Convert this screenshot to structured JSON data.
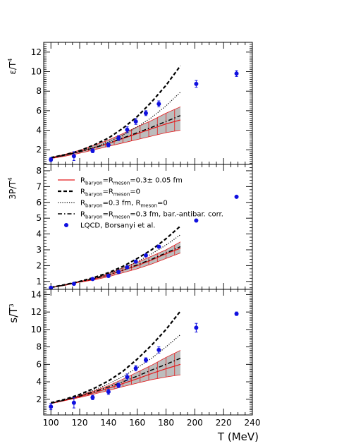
{
  "chart_data": [
    {
      "type": "line",
      "panel": "energy-density",
      "ylabel_base": "ε/T",
      "ylabel_sup": "4",
      "xlabel": "T (MeV)",
      "xlim": [
        95,
        240
      ],
      "ylim": [
        0.5,
        13.0
      ],
      "yticks": [
        2,
        4,
        6,
        8,
        10,
        12
      ],
      "xticks": [
        100,
        120,
        140,
        160,
        180,
        200,
        220,
        240
      ],
      "grid": false,
      "band": {
        "x": [
          100,
          110,
          120,
          130,
          140,
          150,
          160,
          170,
          180,
          190
        ],
        "lower": [
          1.1,
          1.35,
          1.65,
          2.0,
          2.35,
          2.7,
          3.05,
          3.4,
          3.75,
          4.0
        ],
        "upper": [
          1.2,
          1.55,
          1.95,
          2.45,
          3.0,
          3.65,
          4.35,
          5.0,
          5.75,
          6.4
        ],
        "center": [
          1.15,
          1.45,
          1.8,
          2.2,
          2.65,
          3.15,
          3.65,
          4.15,
          4.65,
          5.05
        ]
      },
      "series": [
        {
          "style": "dashed",
          "x": [
            100,
            110,
            120,
            130,
            140,
            150,
            160,
            170,
            180,
            190
          ],
          "y": [
            1.2,
            1.5,
            1.9,
            2.5,
            3.2,
            4.2,
            5.4,
            6.9,
            8.6,
            10.6
          ]
        },
        {
          "style": "dotted",
          "x": [
            100,
            110,
            120,
            130,
            140,
            150,
            160,
            170,
            180,
            190
          ],
          "y": [
            1.2,
            1.45,
            1.8,
            2.25,
            2.8,
            3.5,
            4.35,
            5.3,
            6.5,
            7.9
          ]
        },
        {
          "style": "dashdot",
          "x": [
            100,
            110,
            120,
            130,
            140,
            150,
            160,
            170,
            180,
            190
          ],
          "y": [
            1.15,
            1.45,
            1.8,
            2.2,
            2.65,
            3.2,
            3.75,
            4.3,
            4.9,
            5.5
          ]
        }
      ],
      "points": {
        "x": [
          100,
          116,
          129,
          140,
          147,
          153,
          159,
          166,
          175,
          201,
          229
        ],
        "y": [
          1.0,
          1.35,
          1.9,
          2.5,
          3.2,
          4.05,
          4.9,
          5.75,
          6.7,
          8.75,
          9.8
        ],
        "err": [
          0.2,
          0.45,
          0.2,
          0.2,
          0.25,
          0.3,
          0.3,
          0.25,
          0.3,
          0.35,
          0.3
        ]
      }
    },
    {
      "type": "line",
      "panel": "pressure",
      "ylabel_base": "3P/T",
      "ylabel_sup": "4",
      "xlabel": "T (MeV)",
      "xlim": [
        95,
        240
      ],
      "ylim": [
        0.5,
        8.4
      ],
      "yticks": [
        1,
        2,
        3,
        4,
        5,
        6,
        7,
        8
      ],
      "xticks": [
        100,
        120,
        140,
        160,
        180,
        200,
        220,
        240
      ],
      "grid": false,
      "band": {
        "x": [
          100,
          110,
          120,
          130,
          140,
          150,
          160,
          170,
          180,
          190
        ],
        "lower": [
          0.6,
          0.75,
          0.95,
          1.1,
          1.3,
          1.55,
          1.8,
          2.1,
          2.45,
          2.8
        ],
        "upper": [
          0.62,
          0.8,
          1.0,
          1.2,
          1.5,
          1.85,
          2.2,
          2.6,
          3.0,
          3.5
        ],
        "center": [
          0.61,
          0.78,
          0.97,
          1.15,
          1.4,
          1.7,
          2.0,
          2.35,
          2.75,
          3.1
        ]
      },
      "series": [
        {
          "style": "dashed",
          "x": [
            100,
            110,
            120,
            130,
            140,
            150,
            160,
            170,
            180,
            190
          ],
          "y": [
            0.62,
            0.8,
            1.0,
            1.25,
            1.55,
            1.95,
            2.45,
            3.0,
            3.7,
            4.5
          ]
        },
        {
          "style": "dotted",
          "x": [
            100,
            110,
            120,
            130,
            140,
            150,
            160,
            170,
            180,
            190
          ],
          "y": [
            0.62,
            0.8,
            1.0,
            1.2,
            1.5,
            1.85,
            2.25,
            2.75,
            3.3,
            3.95
          ]
        },
        {
          "style": "dashdot",
          "x": [
            100,
            110,
            120,
            130,
            140,
            150,
            160,
            170,
            180,
            190
          ],
          "y": [
            0.61,
            0.78,
            0.98,
            1.17,
            1.42,
            1.72,
            2.05,
            2.4,
            2.8,
            3.2
          ]
        }
      ],
      "points": {
        "x": [
          100,
          116,
          129,
          140,
          147,
          153,
          159,
          166,
          175,
          201,
          229
        ],
        "y": [
          0.6,
          0.85,
          1.15,
          1.35,
          1.6,
          1.9,
          2.25,
          2.65,
          3.2,
          4.85,
          6.35
        ]
      }
    },
    {
      "type": "line",
      "panel": "entropy-density",
      "ylabel_base": "s/T",
      "ylabel_sup": "3",
      "xlabel": "T (MeV)",
      "xlim": [
        95,
        240
      ],
      "ylim": [
        0.2,
        14.6
      ],
      "yticks": [
        2,
        4,
        6,
        8,
        10,
        12,
        14
      ],
      "xticks": [
        100,
        120,
        140,
        160,
        180,
        200,
        220,
        240
      ],
      "grid": false,
      "band": {
        "x": [
          100,
          110,
          120,
          130,
          140,
          150,
          160,
          170,
          180,
          190
        ],
        "lower": [
          1.5,
          1.85,
          2.2,
          2.6,
          3.0,
          3.45,
          3.85,
          4.25,
          4.55,
          4.8
        ],
        "upper": [
          1.55,
          1.95,
          2.4,
          2.95,
          3.55,
          4.3,
          5.1,
          5.9,
          6.8,
          7.6
        ],
        "center": [
          1.52,
          1.9,
          2.3,
          2.75,
          3.25,
          3.8,
          4.35,
          4.95,
          5.5,
          6.0
        ]
      },
      "series": [
        {
          "style": "dashed",
          "x": [
            100,
            110,
            120,
            130,
            140,
            150,
            160,
            170,
            180,
            190
          ],
          "y": [
            1.6,
            2.0,
            2.55,
            3.25,
            4.1,
            5.2,
            6.6,
            8.2,
            10.0,
            12.1
          ]
        },
        {
          "style": "dotted",
          "x": [
            100,
            110,
            120,
            130,
            140,
            150,
            160,
            170,
            180,
            190
          ],
          "y": [
            1.55,
            1.95,
            2.45,
            3.05,
            3.75,
            4.6,
            5.6,
            6.7,
            8.0,
            9.4
          ]
        },
        {
          "style": "dashdot",
          "x": [
            100,
            110,
            120,
            130,
            140,
            150,
            160,
            170,
            180,
            190
          ],
          "y": [
            1.53,
            1.92,
            2.35,
            2.85,
            3.4,
            4.0,
            4.65,
            5.35,
            6.0,
            6.7
          ]
        }
      ],
      "points": {
        "x": [
          100,
          116,
          129,
          140,
          147,
          153,
          159,
          166,
          175,
          201,
          229
        ],
        "y": [
          1.15,
          1.6,
          2.2,
          2.85,
          3.6,
          4.55,
          5.55,
          6.5,
          7.65,
          10.2,
          11.8
        ],
        "err": [
          0.35,
          0.6,
          0.25,
          0.3,
          0.25,
          0.35,
          0.3,
          0.25,
          0.35,
          0.5,
          0.2
        ]
      }
    }
  ],
  "legend": {
    "items": [
      {
        "style": "band",
        "parts": [
          [
            "R",
            ""
          ],
          [
            "baryon",
            "sub"
          ],
          [
            "=R",
            ""
          ],
          [
            "meson",
            "sub"
          ],
          [
            "=0.3± 0.05 fm",
            ""
          ]
        ]
      },
      {
        "style": "dashed",
        "parts": [
          [
            "R",
            ""
          ],
          [
            "baryon",
            "sub"
          ],
          [
            "=R",
            ""
          ],
          [
            "meson",
            "sub"
          ],
          [
            "=0",
            ""
          ]
        ]
      },
      {
        "style": "dotted",
        "parts": [
          [
            "R",
            ""
          ],
          [
            "baryon",
            "sub"
          ],
          [
            "=0.3 fm, R",
            ""
          ],
          [
            "meson",
            "sub"
          ],
          [
            "=0",
            ""
          ]
        ]
      },
      {
        "style": "dashdot",
        "parts": [
          [
            "R",
            ""
          ],
          [
            "baryon",
            "sub"
          ],
          [
            "=R",
            ""
          ],
          [
            "meson",
            "sub"
          ],
          [
            "=0.3 fm, bar.-antibar. corr.",
            ""
          ]
        ]
      },
      {
        "style": "marker",
        "parts": [
          [
            "LQCD, Borsanyi et al.",
            ""
          ]
        ]
      }
    ]
  },
  "colors": {
    "band_fill": "#bdbdbd",
    "band_edge": "#e31a1c",
    "center_line": "#e31a1c",
    "points": "#1010e0",
    "lines": "#000000"
  }
}
